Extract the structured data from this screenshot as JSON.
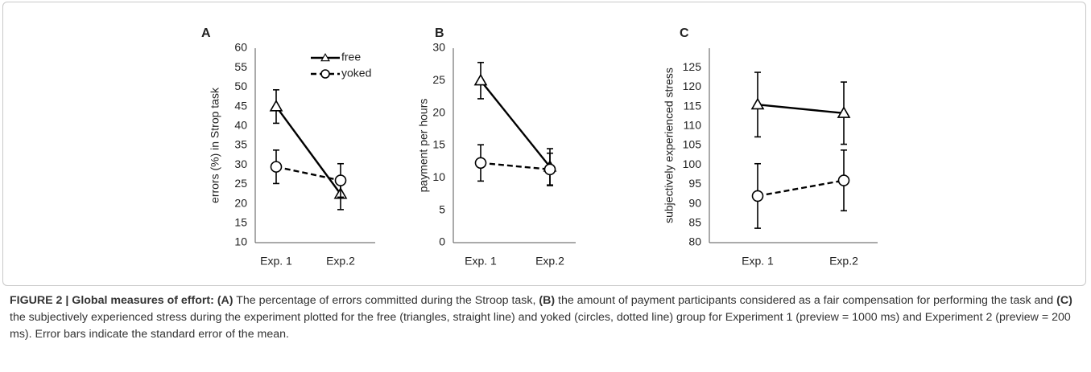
{
  "chart_data": [
    {
      "type": "line",
      "panel": "A",
      "ylabel": "errors (%) in Strop task",
      "categories": [
        "Exp. 1",
        "Exp.2"
      ],
      "ylim": [
        10,
        60
      ],
      "yticks": [
        10,
        15,
        20,
        25,
        30,
        35,
        40,
        45,
        50,
        55,
        60
      ],
      "legend": "top-right",
      "series": [
        {
          "name": "free",
          "color": "#000000",
          "marker": "triangle",
          "dashed": false,
          "values": [
            45,
            22.5
          ],
          "errors": [
            4.3,
            4
          ]
        },
        {
          "name": "yoked",
          "color": "#000000",
          "marker": "circle",
          "dashed": true,
          "values": [
            29.5,
            26
          ],
          "errors": [
            4.3,
            4.3
          ]
        }
      ]
    },
    {
      "type": "line",
      "panel": "B",
      "ylabel": "payment per hours",
      "categories": [
        "Exp. 1",
        "Exp.2"
      ],
      "ylim": [
        0,
        30
      ],
      "yticks": [
        0,
        5,
        10,
        15,
        20,
        25,
        30
      ],
      "series": [
        {
          "color": "#000000",
          "marker": "triangle",
          "dashed": false,
          "values": [
            25,
            11.7
          ],
          "errors": [
            2.8,
            2.8
          ]
        },
        {
          "color": "#000000",
          "marker": "circle",
          "dashed": true,
          "values": [
            12.3,
            11.3
          ],
          "errors": [
            2.8,
            2.5
          ]
        }
      ]
    },
    {
      "type": "line",
      "panel": "C",
      "ylabel": "subjectively experienced stress",
      "categories": [
        "Exp. 1",
        "Exp.2"
      ],
      "ylim": [
        80,
        130
      ],
      "yticks": [
        80,
        85,
        90,
        95,
        100,
        105,
        110,
        115,
        120,
        125
      ],
      "series": [
        {
          "color": "#000000",
          "marker": "triangle",
          "dashed": false,
          "values": [
            115.5,
            113.3
          ],
          "errors": [
            8.3,
            8
          ]
        },
        {
          "color": "#000000",
          "marker": "circle",
          "dashed": true,
          "values": [
            92,
            96
          ],
          "errors": [
            8.3,
            7.8
          ]
        }
      ]
    }
  ],
  "caption": {
    "segments": [
      {
        "text": "FIGURE 2 | Global measures of effort:",
        "bold": true
      },
      {
        "text": " ",
        "bold": false
      },
      {
        "text": "(A)",
        "bold": true
      },
      {
        "text": " The percentage of errors committed during the Stroop task, ",
        "bold": false
      },
      {
        "text": "(B)",
        "bold": true
      },
      {
        "text": " the amount of payment participants considered as a fair compensation for performing the task and ",
        "bold": false
      },
      {
        "text": "(C)",
        "bold": true
      },
      {
        "text": " the subjectively experienced stress during the experiment plotted for the free (triangles, straight line) and yoked (circles, dotted line) group for Experiment 1 (preview = 1000 ms) and Experiment 2 (preview = 200 ms). Error bars indicate the standard error of the mean.",
        "bold": false
      }
    ]
  }
}
